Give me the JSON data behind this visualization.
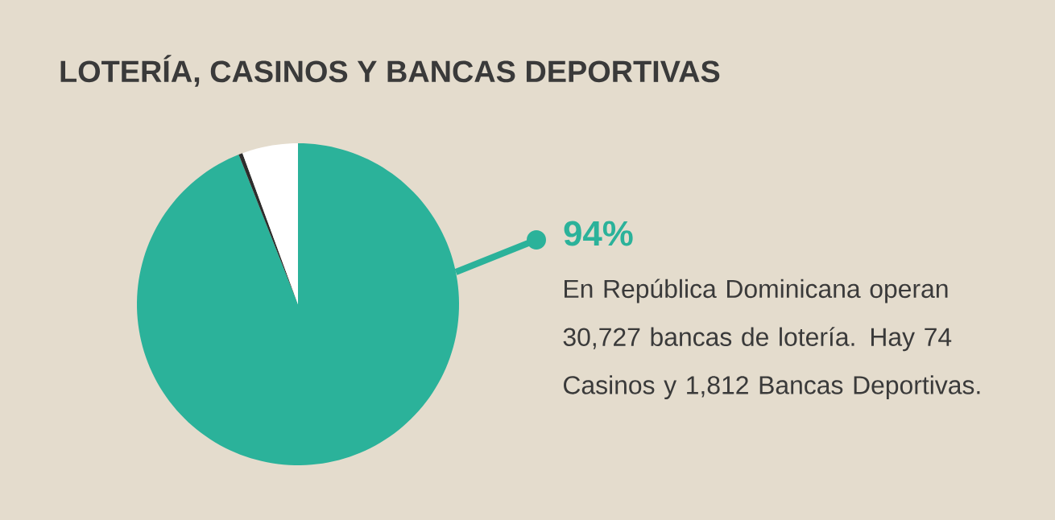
{
  "chart_data": {
    "type": "pie",
    "title": "LOTERÍA, CASINOS Y BANCAS DEPORTIVAS",
    "categories": [
      null,
      null,
      null
    ],
    "values": [
      94,
      0.4,
      5.6
    ],
    "colors": [
      "#2bb29a",
      "#2d2d2d",
      "#ffffff"
    ],
    "annotations": [
      "94%",
      "En República Dominicana operan 30,727 bancas de lotería. Hay 74 Casinos y 1,812 Bancas Deportivas."
    ]
  }
}
